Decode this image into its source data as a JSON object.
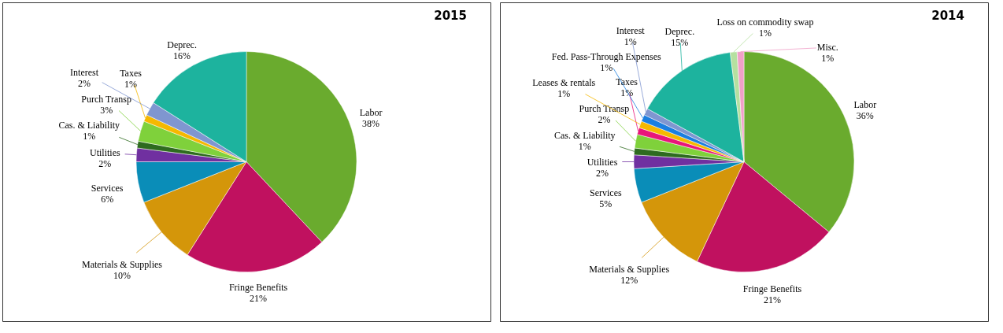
{
  "chart_data": [
    {
      "type": "pie",
      "title": "2015",
      "categories": [
        "Labor",
        "Fringe Benefits",
        "Materials & Supplies",
        "Services",
        "Utilities",
        "Cas. & Liability",
        "Purch Transp",
        "Taxes",
        "Interest",
        "Deprec."
      ],
      "values": [
        38,
        21,
        10,
        6,
        2,
        1,
        3,
        1,
        2,
        16
      ],
      "value_labels": [
        "38%",
        "21%",
        "10%",
        "6%",
        "2%",
        "1%",
        "3%",
        "1%",
        "2%",
        "16%"
      ],
      "colors": [
        "#6aab2e",
        "#c0115f",
        "#d4960a",
        "#0a8db8",
        "#7030a0",
        "#2e6b1f",
        "#7fd13b",
        "#f5b800",
        "#7f96d0",
        "#1db39e"
      ]
    },
    {
      "type": "pie",
      "title": "2014",
      "categories": [
        "Labor",
        "Fringe Benefits",
        "Materials & Supplies",
        "Services",
        "Utilities",
        "Cas. & Liability",
        "Purch Transp",
        "Taxes",
        "Leases & rentals",
        "Fed. Pass-Through Expenses",
        "Interest",
        "Deprec.",
        "Loss on commodity swap",
        "Misc."
      ],
      "values": [
        36,
        21,
        12,
        5,
        2,
        1,
        2,
        1,
        1,
        1,
        1,
        15,
        1,
        1
      ],
      "value_labels": [
        "36%",
        "21%",
        "12%",
        "5%",
        "2%",
        "1%",
        "2%",
        "1%",
        "1%",
        "1%",
        "1%",
        "15%",
        "1%",
        "1%"
      ],
      "colors": [
        "#6aab2e",
        "#c0115f",
        "#d4960a",
        "#0a8db8",
        "#7030a0",
        "#2e6b1f",
        "#7fd13b",
        "#e8157a",
        "#f5b800",
        "#1a7fe0",
        "#7f96d0",
        "#1db39e",
        "#b5e0a0",
        "#f0a0c8"
      ]
    }
  ]
}
